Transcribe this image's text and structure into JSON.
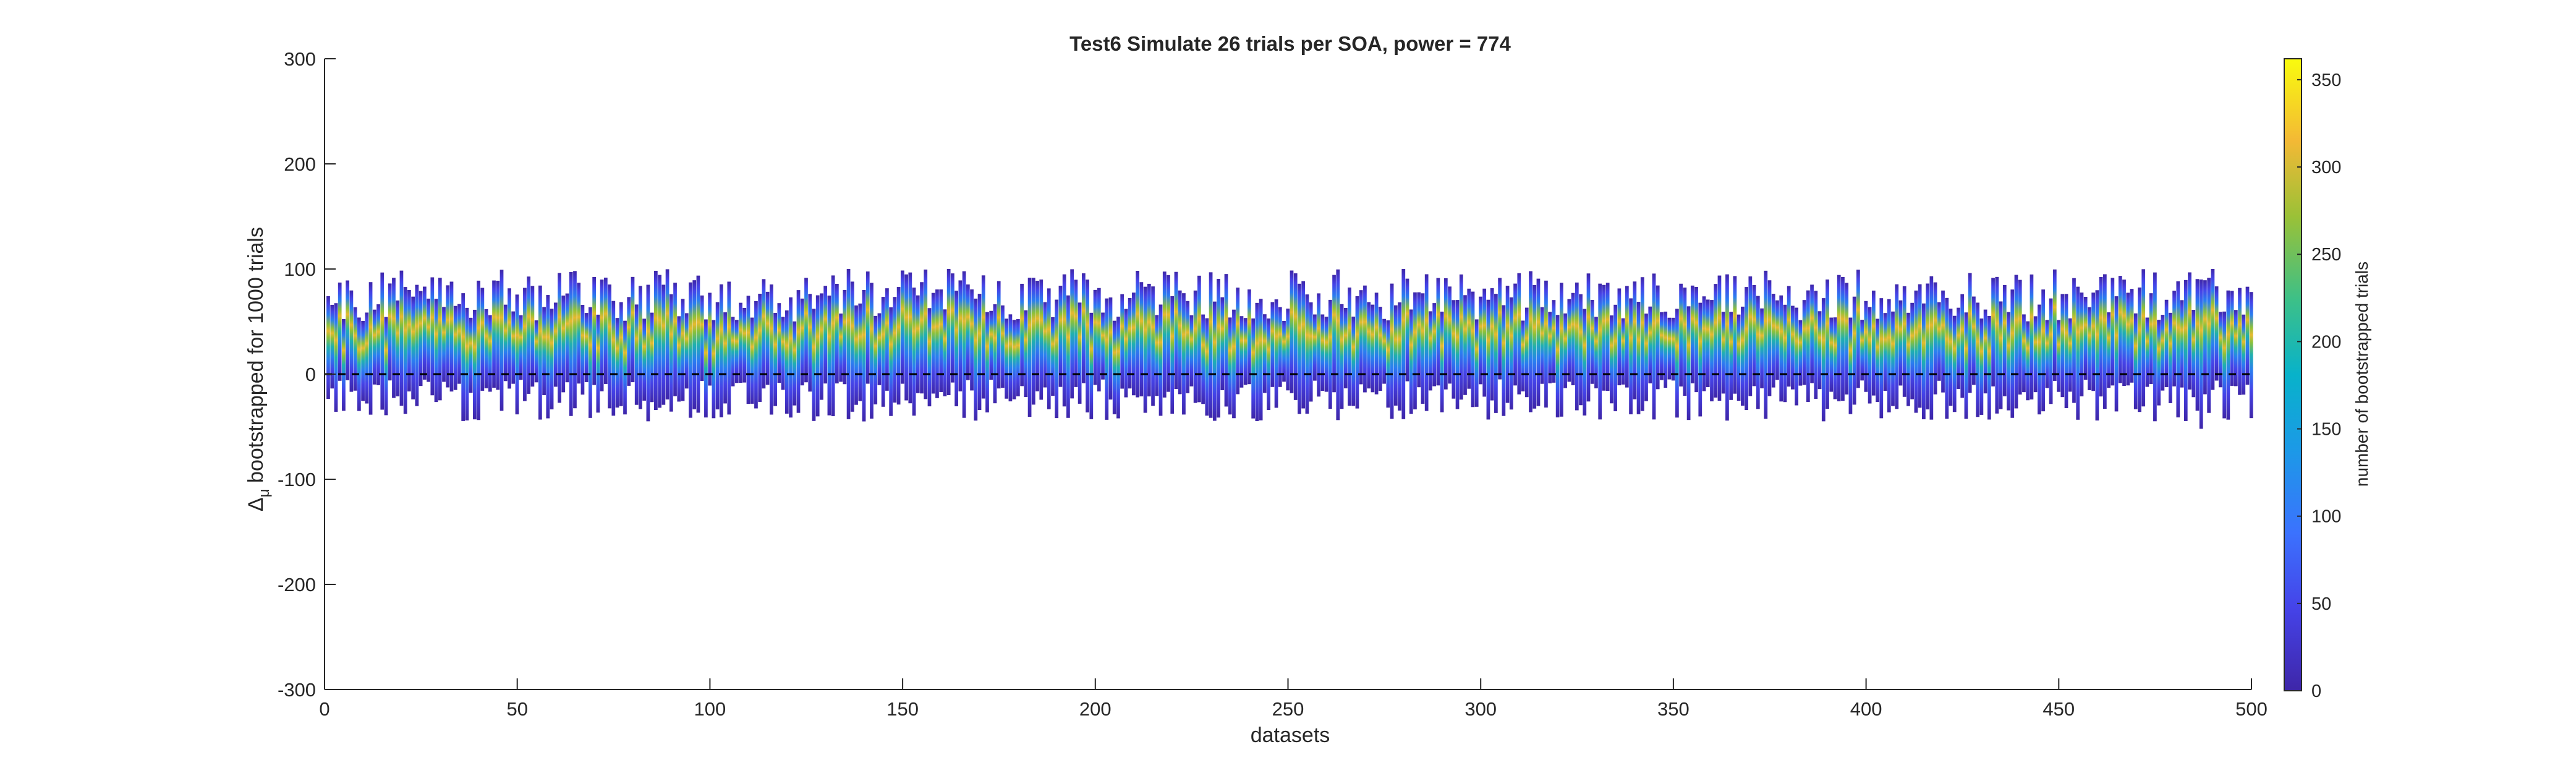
{
  "chart_data": {
    "type": "heatmap",
    "title": "Test6 Simulate 26 trials per SOA, power = 774",
    "xlabel": "datasets",
    "ylabel_symbol": "Δ",
    "ylabel_subscript": "μ",
    "ylabel_text": "bootstrapped for 1000 trials",
    "xlim": [
      0,
      500
    ],
    "ylim": [
      -300,
      300
    ],
    "x_ticks": [
      0,
      50,
      100,
      150,
      200,
      250,
      300,
      350,
      400,
      450,
      500
    ],
    "y_ticks": [
      -300,
      -200,
      -100,
      0,
      100,
      200,
      300
    ],
    "n_datasets": 500,
    "typical_range_per_dataset": {
      "min": [
        -45,
        -5
      ],
      "max": [
        50,
        100
      ]
    },
    "example_extremes": [
      {
        "dataset": 140,
        "min": -45,
        "max": 80
      },
      {
        "dataset": 162,
        "min": -20,
        "max": 100
      },
      {
        "dataset": 487,
        "min": -52,
        "max": 90
      },
      {
        "dataset": 490,
        "min": -15,
        "max": 100
      }
    ],
    "mean_delta_mu": 30,
    "reference_line_y": 0,
    "grid": false,
    "colorbar": {
      "label": "number of bootstrapped trials",
      "min": 0,
      "max": 362,
      "ticks": [
        0,
        50,
        100,
        150,
        200,
        250,
        300,
        350
      ],
      "colormap": "parula"
    }
  }
}
